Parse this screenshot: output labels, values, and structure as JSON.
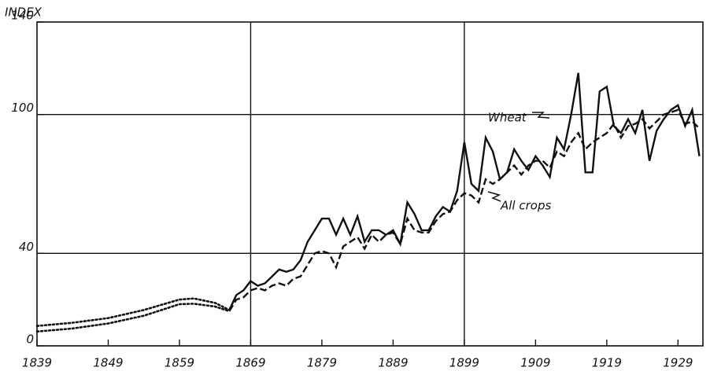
{
  "chart_data": {
    "type": "line",
    "y_label": "INDEX",
    "annotations": [
      "Wheat",
      "All crops"
    ],
    "xlim": [
      1839,
      1932.5
    ],
    "ylim": [
      0,
      140
    ],
    "xticks": [
      1839,
      1849,
      1859,
      1869,
      1879,
      1889,
      1899,
      1909,
      1919,
      1929
    ],
    "yticks": [
      0,
      40,
      100,
      140
    ],
    "xgrid": [
      1869,
      1899
    ],
    "ygrid": [
      40,
      100
    ],
    "series": [
      {
        "name": "Wheat",
        "color": "#111111",
        "dash": "solid",
        "x": [
          1866,
          1867,
          1868,
          1869,
          1870,
          1871,
          1872,
          1873,
          1874,
          1875,
          1876,
          1877,
          1878,
          1879,
          1880,
          1881,
          1882,
          1883,
          1884,
          1885,
          1886,
          1887,
          1888,
          1889,
          1890,
          1891,
          1892,
          1893,
          1894,
          1895,
          1896,
          1897,
          1898,
          1899,
          1900,
          1901,
          1902,
          1903,
          1904,
          1905,
          1906,
          1907,
          1908,
          1909,
          1910,
          1911,
          1912,
          1913,
          1914,
          1915,
          1916,
          1917,
          1918,
          1919,
          1920,
          1921,
          1922,
          1923,
          1924,
          1925,
          1926,
          1927,
          1928,
          1929,
          1930,
          1931,
          1932
        ],
        "values": [
          15.5,
          22,
          24,
          28,
          26,
          27,
          30,
          33,
          32,
          33,
          37,
          45,
          50,
          55,
          55,
          48,
          55,
          48,
          56,
          45,
          50,
          50,
          48,
          50,
          44,
          62,
          57,
          50,
          50,
          56,
          60,
          58,
          67,
          88,
          70,
          67,
          90,
          84,
          72,
          75,
          85,
          80,
          76,
          82,
          78,
          73,
          90,
          85,
          100,
          118,
          75,
          75,
          110,
          112,
          95,
          92,
          98,
          92,
          102,
          80,
          93,
          98,
          102,
          104,
          95,
          102,
          82
        ]
      },
      {
        "name": "All crops",
        "color": "#111111",
        "dash": "dashed",
        "x": [
          1866,
          1867,
          1868,
          1869,
          1870,
          1871,
          1872,
          1873,
          1874,
          1875,
          1876,
          1877,
          1878,
          1879,
          1880,
          1881,
          1882,
          1883,
          1884,
          1885,
          1886,
          1887,
          1888,
          1889,
          1890,
          1891,
          1892,
          1893,
          1894,
          1895,
          1896,
          1897,
          1898,
          1899,
          1900,
          1901,
          1902,
          1903,
          1904,
          1905,
          1906,
          1907,
          1908,
          1909,
          1910,
          1911,
          1912,
          1913,
          1914,
          1915,
          1916,
          1917,
          1918,
          1919,
          1920,
          1921,
          1922,
          1923,
          1924,
          1925,
          1926,
          1927,
          1928,
          1929,
          1930,
          1931,
          1932
        ],
        "values": [
          15,
          20,
          21,
          24,
          25,
          24,
          26,
          27,
          26,
          29,
          30,
          35,
          40,
          41,
          40,
          34,
          43,
          45,
          47,
          42,
          48,
          45,
          48,
          49,
          44,
          55,
          50,
          49,
          49,
          54,
          57,
          58,
          63,
          66,
          65,
          62,
          72,
          70,
          72,
          75,
          78,
          74,
          78,
          80,
          80,
          77,
          84,
          82,
          88,
          92,
          85,
          88,
          90,
          92,
          96,
          90,
          95,
          96,
          98,
          94,
          97,
          100,
          101,
          102,
          96,
          97,
          94
        ]
      },
      {
        "color": "#111111",
        "dash": "dotted",
        "x": [
          1839,
          1844,
          1849,
          1854,
          1859,
          1861,
          1864,
          1866
        ],
        "values": [
          8.6,
          10,
          12,
          15.5,
          20,
          20.5,
          18.6,
          15.5
        ]
      },
      {
        "color": "#111111",
        "dash": "dotted",
        "x": [
          1839,
          1844,
          1849,
          1854,
          1859,
          1861,
          1864,
          1866
        ],
        "values": [
          6.2,
          7.5,
          9.7,
          13,
          18,
          18.2,
          17,
          15
        ]
      }
    ]
  }
}
